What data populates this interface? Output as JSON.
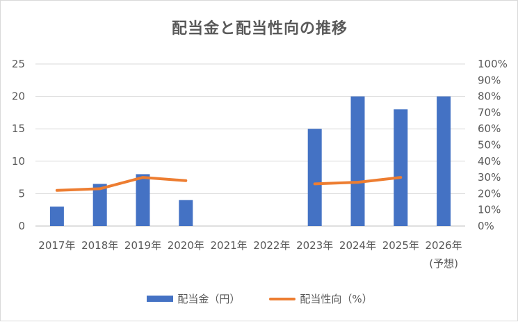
{
  "chart_data": {
    "type": "bar+line",
    "title": "配当金と配当性向の推移",
    "categories": [
      "2017年",
      "2018年",
      "2019年",
      "2020年",
      "2021年",
      "2022年",
      "2023年",
      "2024年",
      "2025年",
      "2026年"
    ],
    "category_sublabels": [
      "",
      "",
      "",
      "",
      "",
      "",
      "",
      "",
      "",
      "(予想)"
    ],
    "series": [
      {
        "name": "配当金（円）",
        "type": "bar",
        "axis": "left",
        "color": "#4472c4",
        "values": [
          3,
          6.5,
          8,
          4,
          null,
          null,
          15,
          20,
          18,
          20
        ]
      },
      {
        "name": "配当性向（%）",
        "type": "line",
        "axis": "right",
        "color": "#ed7d31",
        "values": [
          22,
          23,
          30,
          28,
          null,
          null,
          26,
          27,
          30,
          null
        ]
      }
    ],
    "y_left": {
      "min": 0,
      "max": 25,
      "ticks": [
        "0",
        "5",
        "10",
        "15",
        "20",
        "25"
      ]
    },
    "y_right": {
      "min": 0,
      "max": 100,
      "ticks": [
        "0%",
        "10%",
        "20%",
        "30%",
        "40%",
        "50%",
        "60%",
        "70%",
        "80%",
        "90%",
        "100%"
      ]
    },
    "grid": true,
    "legend_position": "bottom"
  }
}
